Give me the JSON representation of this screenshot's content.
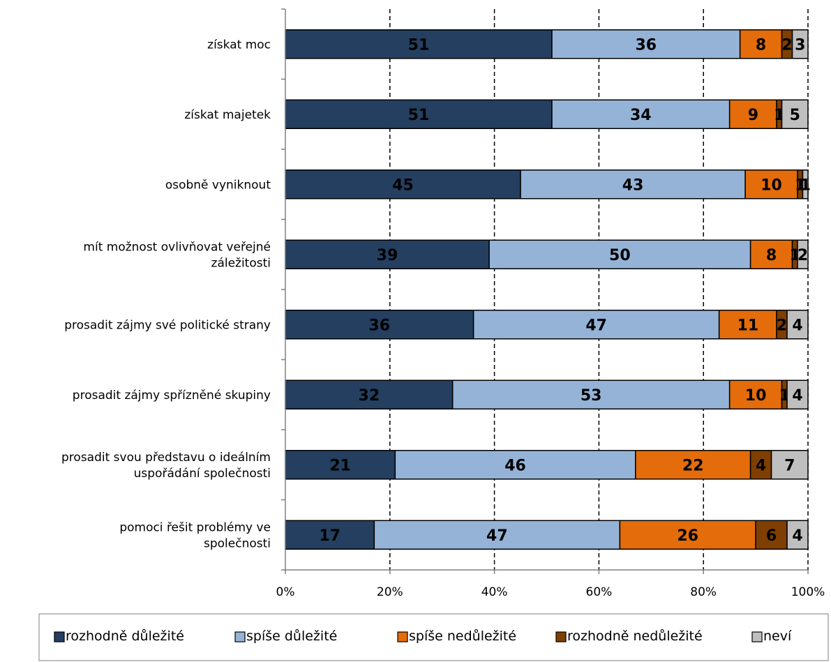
{
  "chart_data": {
    "type": "bar",
    "orientation": "horizontal",
    "stacked": true,
    "normalized": true,
    "categories": [
      [
        "získat moc"
      ],
      [
        "získat majetek"
      ],
      [
        "osobně vyniknout"
      ],
      [
        "mít možnost ovlivňovat veřejné",
        "záležitosti"
      ],
      [
        "prosadit zájmy své politické strany"
      ],
      [
        "prosadit zájmy spřízněné skupiny"
      ],
      [
        "prosadit svou představu o ideálním",
        "uspořádání společnosti"
      ],
      [
        "pomoci řešit problémy ve",
        "společnosti"
      ]
    ],
    "series": [
      {
        "name": "rozhodně důležité",
        "color": "#243f60",
        "values": [
          51,
          51,
          45,
          39,
          36,
          32,
          21,
          17
        ]
      },
      {
        "name": "spíše důležité",
        "color": "#95b3d7",
        "values": [
          36,
          34,
          43,
          50,
          47,
          53,
          46,
          47
        ]
      },
      {
        "name": "spíše nedůležité",
        "color": "#e46c0a",
        "values": [
          8,
          9,
          10,
          8,
          11,
          10,
          22,
          26
        ]
      },
      {
        "name": "rozhodně nedůležité",
        "color": "#7f3f00",
        "values": [
          2,
          1,
          1,
          1,
          2,
          1,
          4,
          6
        ]
      },
      {
        "name": "neví",
        "color": "#bfbfbf",
        "values": [
          3,
          5,
          1,
          2,
          4,
          4,
          7,
          4
        ]
      }
    ],
    "x_ticks": [
      "0%",
      "20%",
      "40%",
      "60%",
      "80%",
      "100%"
    ],
    "xlim": [
      0,
      100
    ],
    "grid": "vertical-dashed",
    "legend_position": "bottom"
  }
}
